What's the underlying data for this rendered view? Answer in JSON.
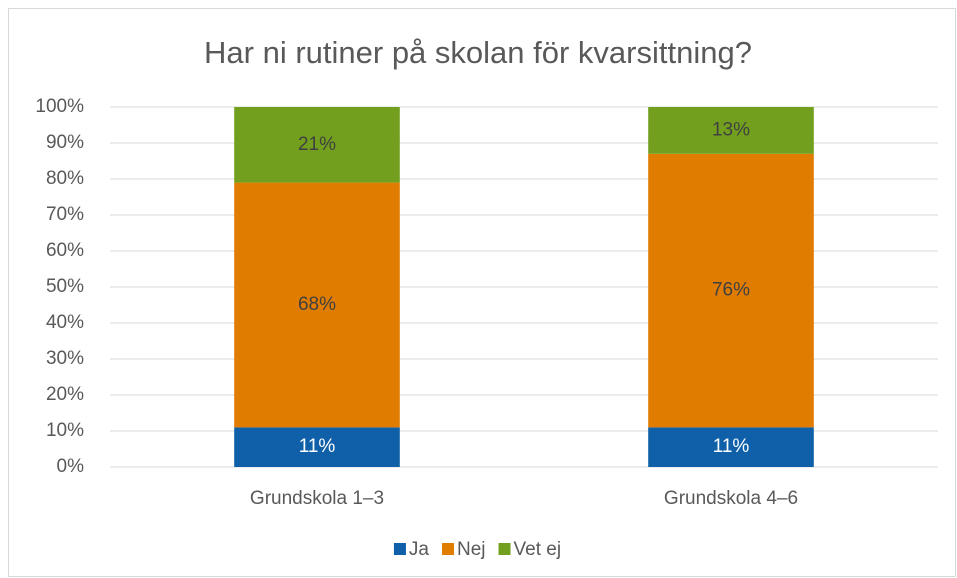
{
  "chart_data": {
    "type": "bar",
    "stacked": true,
    "title": "Har ni rutiner på skolan för kvarsittning?",
    "categories": [
      "Grundskola 1–3",
      "Grundskola 4–6"
    ],
    "series": [
      {
        "name": "Ja",
        "color": "#0f60a8",
        "values": [
          11,
          11
        ],
        "value_labels": [
          "11%",
          "11%"
        ]
      },
      {
        "name": "Nej",
        "color": "#e07d00",
        "values": [
          68,
          76
        ],
        "value_labels": [
          "68%",
          "76%"
        ]
      },
      {
        "name": "Vet ej",
        "color": "#72a01e",
        "values": [
          21,
          13
        ],
        "value_labels": [
          "21%",
          "13%"
        ]
      }
    ],
    "ylim": [
      0,
      100
    ],
    "yticks": [
      {
        "value": 0,
        "label": "0%"
      },
      {
        "value": 10,
        "label": "10%"
      },
      {
        "value": 20,
        "label": "20%"
      },
      {
        "value": 30,
        "label": "30%"
      },
      {
        "value": 40,
        "label": "40%"
      },
      {
        "value": 50,
        "label": "50%"
      },
      {
        "value": 60,
        "label": "60%"
      },
      {
        "value": 70,
        "label": "70%"
      },
      {
        "value": 80,
        "label": "80%"
      },
      {
        "value": 90,
        "label": "90%"
      },
      {
        "value": 100,
        "label": "100%"
      }
    ],
    "grid": true,
    "legend": "bottom"
  }
}
